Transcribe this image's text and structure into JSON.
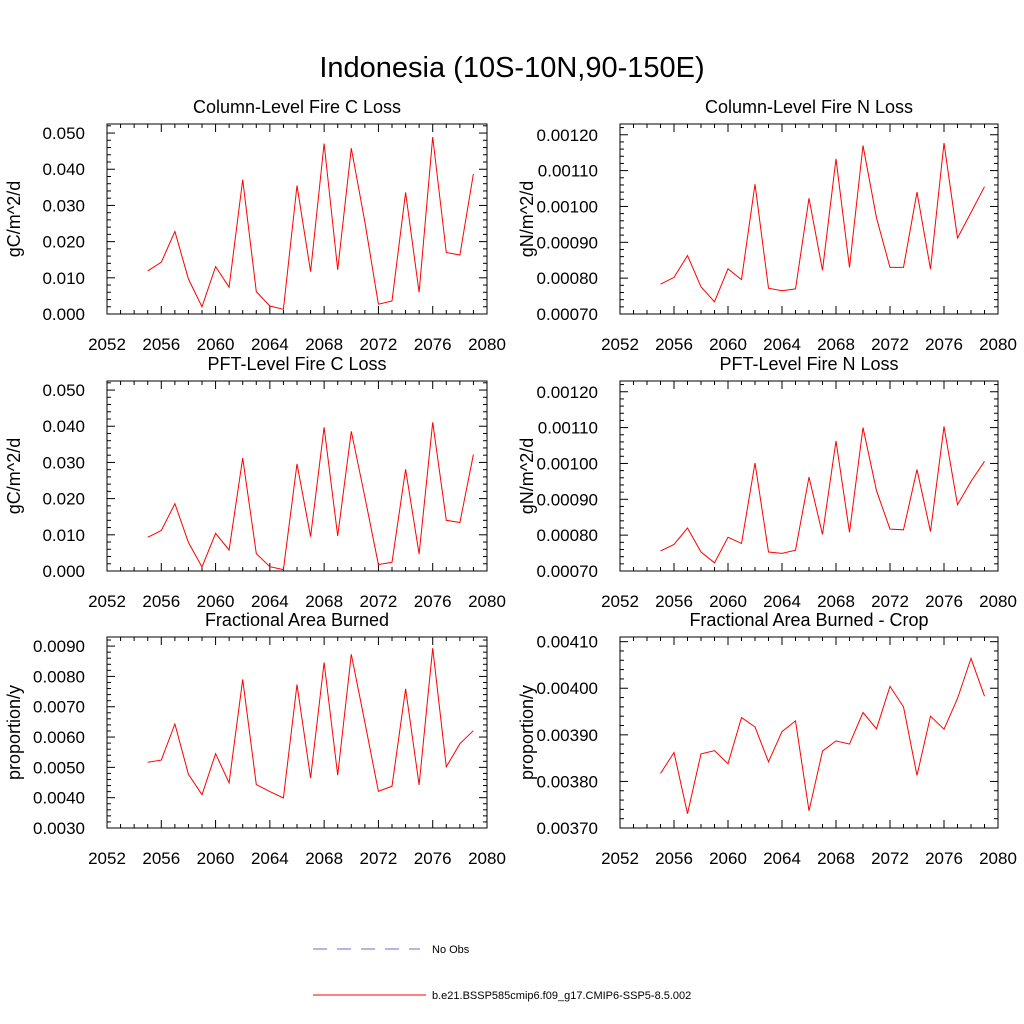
{
  "figure_title": "Indonesia (10S-10N,90-150E)",
  "legend": [
    {
      "label": "No Obs",
      "color": "#6b6bcc",
      "style": "dashed"
    },
    {
      "label": "b.e21.BSSP585cmip6.f09_g17.CMIP6-SSP5-8.5.002",
      "color": "#ff0000",
      "style": "solid"
    }
  ],
  "chart_data": [
    {
      "type": "line",
      "title": "Column-Level Fire C Loss",
      "ylabel": "gC/m^2/d",
      "xlim": [
        2052,
        2080
      ],
      "ylim": [
        0.0,
        0.0525
      ],
      "x_ticks": [
        2052,
        2056,
        2060,
        2064,
        2068,
        2072,
        2076,
        2080
      ],
      "y_ticks": [
        0.0,
        0.01,
        0.02,
        0.03,
        0.04,
        0.05
      ],
      "y_tick_labels": [
        "0.000",
        "0.010",
        "0.020",
        "0.030",
        "0.040",
        "0.050"
      ],
      "x": [
        2055,
        2056,
        2057,
        2058,
        2059,
        2060,
        2061,
        2062,
        2063,
        2064,
        2065,
        2066,
        2067,
        2068,
        2069,
        2070,
        2071,
        2072,
        2073,
        2074,
        2075,
        2076,
        2077,
        2078,
        2079
      ],
      "series": [
        {
          "color": "#ff0000",
          "values": [
            0.0119,
            0.0143,
            0.0228,
            0.0097,
            0.002,
            0.0131,
            0.0074,
            0.0371,
            0.0062,
            0.0022,
            0.0013,
            0.0355,
            0.0117,
            0.0471,
            0.0122,
            0.0458,
            0.0254,
            0.0027,
            0.0036,
            0.0336,
            0.006,
            0.0489,
            0.017,
            0.0163,
            0.0387
          ]
        }
      ]
    },
    {
      "type": "line",
      "title": "Column-Level Fire N Loss",
      "ylabel": "gN/m^2/d",
      "xlim": [
        2052,
        2080
      ],
      "ylim": [
        0.0007,
        0.00123
      ],
      "x_ticks": [
        2052,
        2056,
        2060,
        2064,
        2068,
        2072,
        2076,
        2080
      ],
      "y_ticks": [
        0.0007,
        0.0008,
        0.0009,
        0.001,
        0.0011,
        0.0012
      ],
      "y_tick_labels": [
        "0.00070",
        "0.00080",
        "0.00090",
        "0.00100",
        "0.00110",
        "0.00120"
      ],
      "x": [
        2055,
        2056,
        2057,
        2058,
        2059,
        2060,
        2061,
        2062,
        2063,
        2064,
        2065,
        2066,
        2067,
        2068,
        2069,
        2070,
        2071,
        2072,
        2073,
        2074,
        2075,
        2076,
        2077,
        2078,
        2079
      ],
      "series": [
        {
          "color": "#ff0000",
          "values": [
            0.000783,
            0.000802,
            0.000863,
            0.000776,
            0.000734,
            0.000826,
            0.000796,
            0.001062,
            0.000772,
            0.000765,
            0.00077,
            0.001023,
            0.000822,
            0.001133,
            0.00083,
            0.00117,
            0.000968,
            0.00083,
            0.00083,
            0.00104,
            0.000825,
            0.001177,
            0.000912,
            0.000983,
            0.001055
          ]
        }
      ]
    },
    {
      "type": "line",
      "title": "PFT-Level Fire C Loss",
      "ylabel": "gC/m^2/d",
      "xlim": [
        2052,
        2080
      ],
      "ylim": [
        0.0,
        0.0525
      ],
      "x_ticks": [
        2052,
        2056,
        2060,
        2064,
        2068,
        2072,
        2076,
        2080
      ],
      "y_ticks": [
        0.0,
        0.01,
        0.02,
        0.03,
        0.04,
        0.05
      ],
      "y_tick_labels": [
        "0.000",
        "0.010",
        "0.020",
        "0.030",
        "0.040",
        "0.050"
      ],
      "x": [
        2055,
        2056,
        2057,
        2058,
        2059,
        2060,
        2061,
        2062,
        2063,
        2064,
        2065,
        2066,
        2067,
        2068,
        2069,
        2070,
        2071,
        2072,
        2073,
        2074,
        2075,
        2076,
        2077,
        2078,
        2079
      ],
      "series": [
        {
          "color": "#ff0000",
          "values": [
            0.0093,
            0.0112,
            0.0186,
            0.0079,
            0.0011,
            0.0104,
            0.0058,
            0.0312,
            0.0048,
            0.0012,
            0.0004,
            0.0296,
            0.0095,
            0.0397,
            0.0097,
            0.0386,
            0.0204,
            0.0018,
            0.0024,
            0.0281,
            0.0047,
            0.0411,
            0.014,
            0.0134,
            0.0322
          ]
        }
      ]
    },
    {
      "type": "line",
      "title": "PFT-Level Fire N Loss",
      "ylabel": "gN/m^2/d",
      "xlim": [
        2052,
        2080
      ],
      "ylim": [
        0.0007,
        0.00123
      ],
      "x_ticks": [
        2052,
        2056,
        2060,
        2064,
        2068,
        2072,
        2076,
        2080
      ],
      "y_ticks": [
        0.0007,
        0.0008,
        0.0009,
        0.001,
        0.0011,
        0.0012
      ],
      "y_tick_labels": [
        "0.00070",
        "0.00080",
        "0.00090",
        "0.00100",
        "0.00110",
        "0.00120"
      ],
      "x": [
        2055,
        2056,
        2057,
        2058,
        2059,
        2060,
        2061,
        2062,
        2063,
        2064,
        2065,
        2066,
        2067,
        2068,
        2069,
        2070,
        2071,
        2072,
        2073,
        2074,
        2075,
        2076,
        2077,
        2078,
        2079
      ],
      "series": [
        {
          "color": "#ff0000",
          "values": [
            0.000756,
            0.000774,
            0.00082,
            0.000753,
            0.000723,
            0.000794,
            0.000777,
            0.001001,
            0.000753,
            0.000749,
            0.000758,
            0.000962,
            0.000802,
            0.001063,
            0.000808,
            0.0011,
            0.000924,
            0.000817,
            0.000815,
            0.000983,
            0.00081,
            0.001103,
            0.000885,
            0.00095,
            0.001006
          ]
        }
      ]
    },
    {
      "type": "line",
      "title": "Fractional Area Burned",
      "ylabel": "proportion/y",
      "xlim": [
        2052,
        2080
      ],
      "ylim": [
        0.003,
        0.0093
      ],
      "x_ticks": [
        2052,
        2056,
        2060,
        2064,
        2068,
        2072,
        2076,
        2080
      ],
      "y_ticks": [
        0.003,
        0.004,
        0.005,
        0.006,
        0.007,
        0.008,
        0.009
      ],
      "y_tick_labels": [
        "0.0030",
        "0.0040",
        "0.0050",
        "0.0060",
        "0.0070",
        "0.0080",
        "0.0090"
      ],
      "x": [
        2055,
        2056,
        2057,
        2058,
        2059,
        2060,
        2061,
        2062,
        2063,
        2064,
        2065,
        2066,
        2067,
        2068,
        2069,
        2070,
        2071,
        2072,
        2073,
        2074,
        2075,
        2076,
        2077,
        2078,
        2079
      ],
      "series": [
        {
          "color": "#ff0000",
          "values": [
            0.00517,
            0.00524,
            0.00643,
            0.00477,
            0.0041,
            0.00545,
            0.00449,
            0.0079,
            0.00443,
            0.0042,
            0.00399,
            0.00773,
            0.00465,
            0.00846,
            0.00474,
            0.00873,
            0.00648,
            0.00421,
            0.00438,
            0.00759,
            0.00442,
            0.00893,
            0.00502,
            0.00578,
            0.00621
          ]
        }
      ]
    },
    {
      "type": "line",
      "title": "Fractional Area Burned - Crop",
      "ylabel": "proportion/y",
      "xlim": [
        2052,
        2080
      ],
      "ylim": [
        0.0037,
        0.00411
      ],
      "x_ticks": [
        2052,
        2056,
        2060,
        2064,
        2068,
        2072,
        2076,
        2080
      ],
      "y_ticks": [
        0.0037,
        0.0038,
        0.0039,
        0.004,
        0.0041
      ],
      "y_tick_labels": [
        "0.00370",
        "0.00380",
        "0.00390",
        "0.00400",
        "0.00410"
      ],
      "x": [
        2055,
        2056,
        2057,
        2058,
        2059,
        2060,
        2061,
        2062,
        2063,
        2064,
        2065,
        2066,
        2067,
        2068,
        2069,
        2070,
        2071,
        2072,
        2073,
        2074,
        2075,
        2076,
        2077,
        2078,
        2079
      ],
      "series": [
        {
          "color": "#ff0000",
          "values": [
            0.003817,
            0.003862,
            0.003731,
            0.003859,
            0.003866,
            0.003838,
            0.003937,
            0.003917,
            0.003842,
            0.003907,
            0.00393,
            0.003737,
            0.003865,
            0.003887,
            0.00388,
            0.003948,
            0.003913,
            0.004004,
            0.00396,
            0.003813,
            0.00394,
            0.003912,
            0.003978,
            0.004064,
            0.003983
          ]
        }
      ]
    }
  ]
}
